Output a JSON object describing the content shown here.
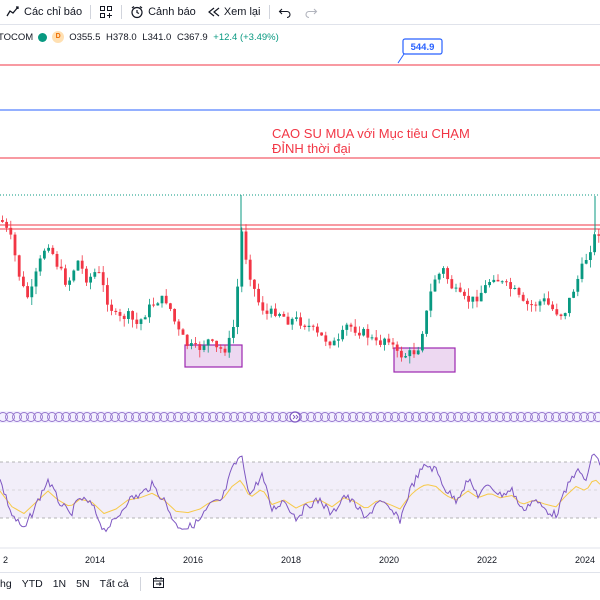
{
  "toolbar": {
    "indicators_label": "Các chỉ báo",
    "alerts_label": "Cảnh báo",
    "replay_label": "Xem lại"
  },
  "symbol": {
    "name_fragment": "TOCOM",
    "interval_badge": "D",
    "open": "O355.5",
    "high": "H378.0",
    "low": "L341.0",
    "close": "C367.9",
    "change": "+12.4 (+3.49%)"
  },
  "annotation": {
    "price_tag": "544.9",
    "text_line1": "CAO SU MUA với Mục tiêu CHẠM",
    "text_line2": "ĐỈNH thời đại"
  },
  "time_axis": {
    "labels": [
      "2",
      "2014",
      "2016",
      "2018",
      "2020",
      "2022",
      "2024"
    ]
  },
  "range_bar": {
    "items": [
      "hg",
      "YTD",
      "1N",
      "5N",
      "Tất cả"
    ]
  },
  "colors": {
    "up": "#089981",
    "down": "#f23645",
    "red_line": "#f23645",
    "blue_line": "#2962ff",
    "rsi_line": "#7e57c2",
    "rsi_ma": "#f7c948",
    "box_fill": "#e1bee7",
    "box_stroke": "#9c27b0",
    "annotation_text": "#f23645"
  },
  "chart_data": {
    "type": "candlestick",
    "x_range": [
      "2012",
      "2024"
    ],
    "horizontal_levels": [
      {
        "value": 544.9,
        "color": "red",
        "label": "544.9"
      }
    ],
    "rsi": {
      "overbought": 70,
      "oversold": 30
    }
  }
}
